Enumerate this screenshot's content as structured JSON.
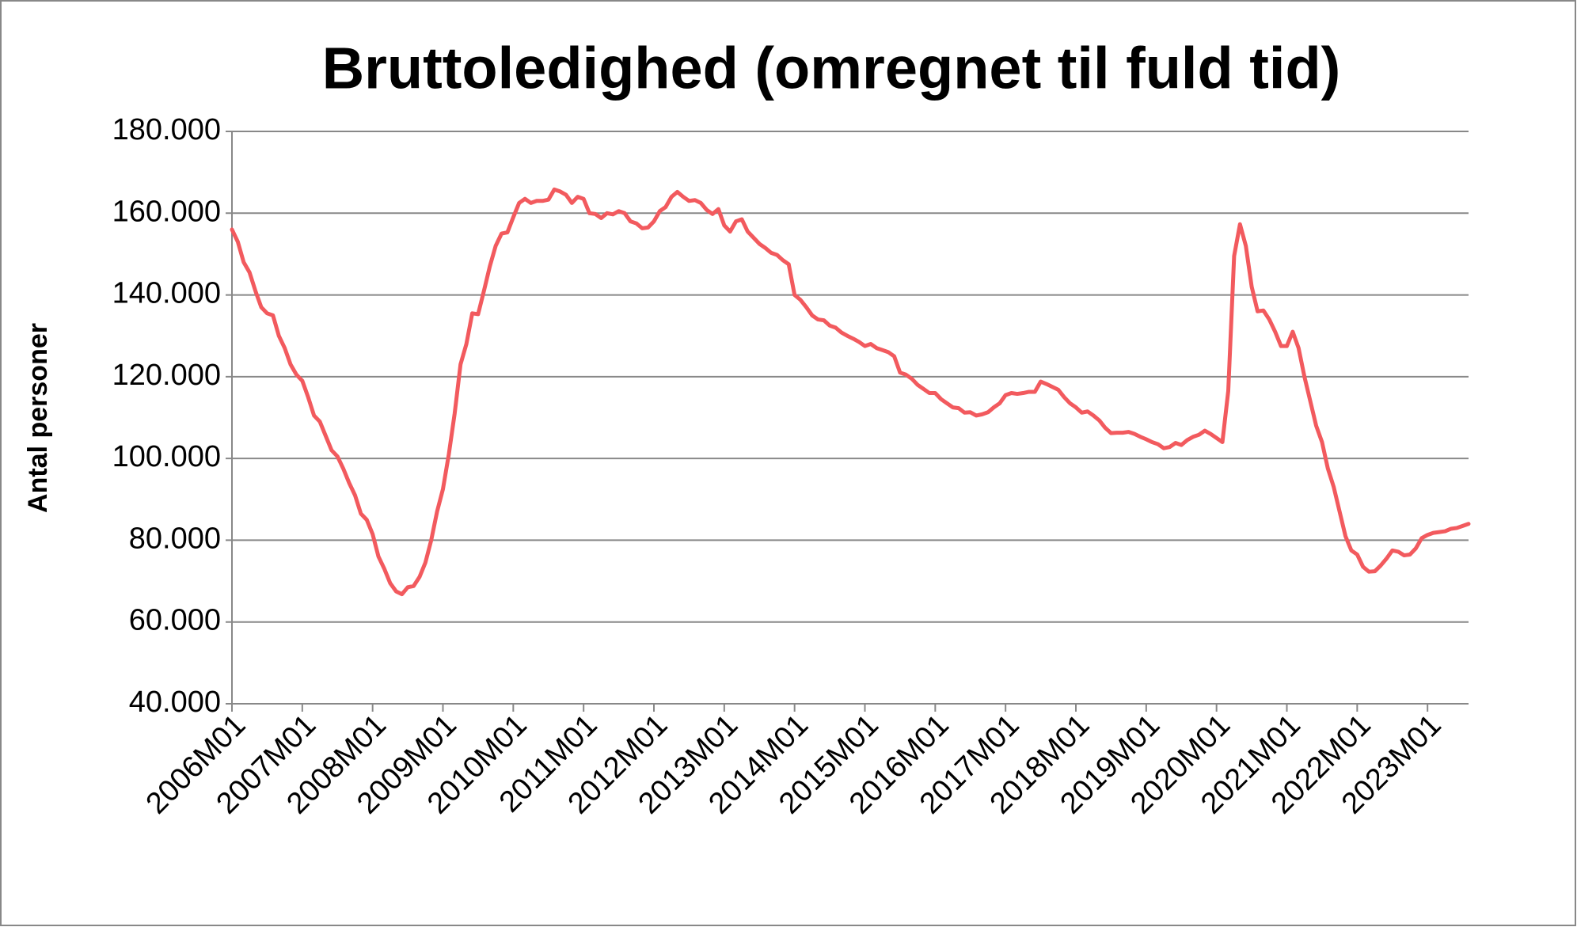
{
  "chart_data": {
    "type": "line",
    "title": "Bruttoledighed (omregnet til fuld tid)",
    "y_label": "Antal personer",
    "categories": [
      "2006M01",
      null,
      null,
      null,
      null,
      null,
      null,
      null,
      null,
      null,
      null,
      null,
      "2007M01",
      null,
      null,
      null,
      null,
      null,
      null,
      null,
      null,
      null,
      null,
      null,
      "2008M01",
      null,
      null,
      null,
      null,
      null,
      null,
      null,
      null,
      null,
      null,
      null,
      "2009M01",
      null,
      null,
      null,
      null,
      null,
      null,
      null,
      null,
      null,
      null,
      null,
      "2010M01",
      null,
      null,
      null,
      null,
      null,
      null,
      null,
      null,
      null,
      null,
      null,
      "2011M01",
      null,
      null,
      null,
      null,
      null,
      null,
      null,
      null,
      null,
      null,
      null,
      "2012M01",
      null,
      null,
      null,
      null,
      null,
      null,
      null,
      null,
      null,
      null,
      null,
      "2013M01",
      null,
      null,
      null,
      null,
      null,
      null,
      null,
      null,
      null,
      null,
      null,
      "2014M01",
      null,
      null,
      null,
      null,
      null,
      null,
      null,
      null,
      null,
      null,
      null,
      "2015M01",
      null,
      null,
      null,
      null,
      null,
      null,
      null,
      null,
      null,
      null,
      null,
      "2016M01",
      null,
      null,
      null,
      null,
      null,
      null,
      null,
      null,
      null,
      null,
      null,
      "2017M01",
      null,
      null,
      null,
      null,
      null,
      null,
      null,
      null,
      null,
      null,
      null,
      "2018M01",
      null,
      null,
      null,
      null,
      null,
      null,
      null,
      null,
      null,
      null,
      null,
      "2019M01",
      null,
      null,
      null,
      null,
      null,
      null,
      null,
      null,
      null,
      null,
      null,
      "2020M01",
      null,
      null,
      null,
      null,
      null,
      null,
      null,
      null,
      null,
      null,
      null,
      "2021M01",
      null,
      null,
      null,
      null,
      null,
      null,
      null,
      null,
      null,
      null,
      null,
      "2022M01",
      null,
      null,
      null,
      null,
      null,
      null,
      null,
      null,
      null,
      null,
      null,
      "2023M01",
      null,
      null,
      null,
      null,
      null,
      null,
      null
    ],
    "values": [
      156000,
      153000,
      148000,
      145500,
      141000,
      137000,
      135500,
      135000,
      130000,
      127000,
      123000,
      120500,
      119000,
      115000,
      110500,
      109000,
      105500,
      102000,
      100500,
      97500,
      94000,
      91000,
      86500,
      85000,
      81500,
      76000,
      73000,
      69500,
      67500,
      66800,
      68500,
      68800,
      71000,
      74500,
      80000,
      87000,
      92500,
      101000,
      111000,
      123000,
      128000,
      135500,
      135300,
      141000,
      147000,
      152000,
      155000,
      155300,
      159000,
      162500,
      163500,
      162500,
      163000,
      163000,
      163300,
      165800,
      165300,
      164500,
      162500,
      164000,
      163500,
      160000,
      159800,
      158800,
      160000,
      159700,
      160500,
      160000,
      158000,
      157500,
      156300,
      156500,
      158000,
      160500,
      161500,
      164000,
      165200,
      164000,
      163000,
      163200,
      162500,
      160800,
      159800,
      161000,
      157000,
      155500,
      158000,
      158500,
      155500,
      154000,
      152500,
      151500,
      150300,
      149800,
      148500,
      147500,
      140000,
      138800,
      137000,
      135000,
      134000,
      133800,
      132500,
      132000,
      130800,
      130000,
      129300,
      128500,
      127500,
      128000,
      127000,
      126500,
      126000,
      125000,
      121000,
      120500,
      119500,
      118000,
      117000,
      116000,
      116000,
      114500,
      113500,
      112500,
      112300,
      111200,
      111300,
      110500,
      110800,
      111300,
      112500,
      113500,
      115500,
      116000,
      115800,
      116000,
      116300,
      116300,
      118800,
      118200,
      117500,
      116800,
      115000,
      113500,
      112500,
      111200,
      111500,
      110500,
      109300,
      107500,
      106200,
      106300,
      106300,
      106500,
      106000,
      105300,
      104700,
      104000,
      103500,
      102500,
      102800,
      103800,
      103300,
      104500,
      105300,
      105800,
      106800,
      106000,
      105000,
      104000,
      116500,
      149500,
      157300,
      152000,
      142000,
      136000,
      136200,
      134000,
      131000,
      127500,
      127500,
      131000,
      127000,
      120000,
      114000,
      108000,
      104000,
      97500,
      93000,
      87000,
      81000,
      77500,
      76500,
      73500,
      72300,
      72400,
      73800,
      75500,
      77500,
      77200,
      76300,
      76500,
      78000,
      80500,
      81300,
      81800,
      82000,
      82200,
      82800,
      83000,
      83500,
      84000
    ],
    "color": "#f25a5e",
    "ylim": [
      40000,
      180000
    ],
    "yticks": [
      {
        "value": 40000,
        "label": "40.000"
      },
      {
        "value": 60000,
        "label": "60.000"
      },
      {
        "value": 80000,
        "label": "80.000"
      },
      {
        "value": 100000,
        "label": "100.000"
      },
      {
        "value": 120000,
        "label": "120.000"
      },
      {
        "value": 140000,
        "label": "140.000"
      },
      {
        "value": 160000,
        "label": "160.000"
      },
      {
        "value": 180000,
        "label": "180.000"
      }
    ],
    "grid": true
  }
}
